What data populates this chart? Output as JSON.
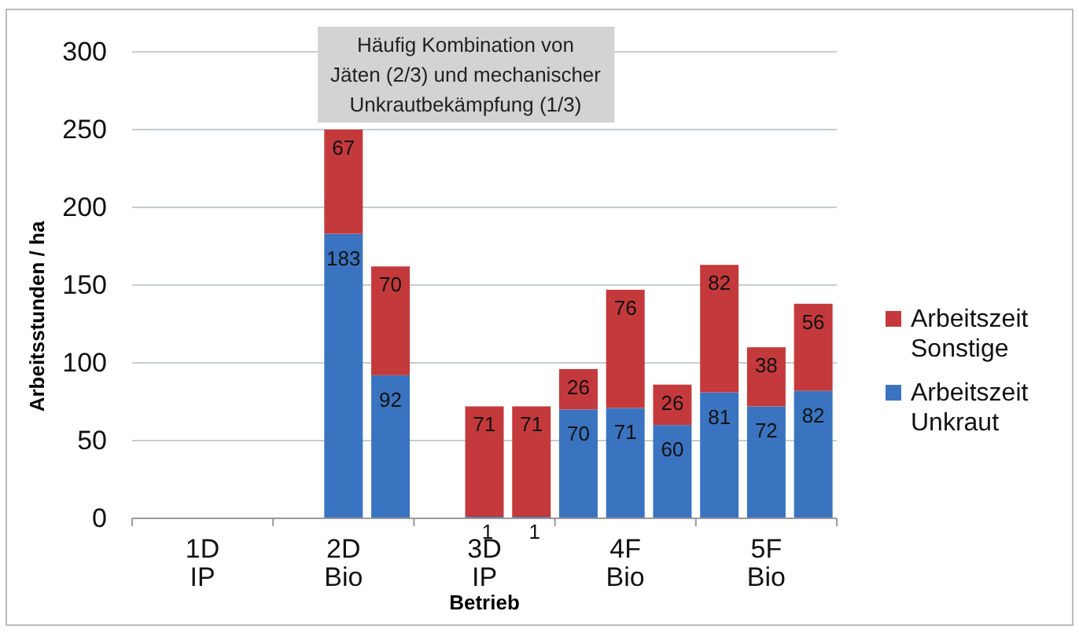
{
  "chart_data": {
    "type": "bar",
    "stacked": true,
    "xlabel": "Betrieb",
    "ylabel": "Arbeitsstunden / ha",
    "categories": [
      null,
      "1D\nIP",
      null,
      null,
      "2D\nBio",
      null,
      null,
      "3D\nIP",
      null,
      null,
      "4F\nBio",
      null,
      null,
      "5F\nBio",
      null
    ],
    "series": [
      {
        "name": "Arbeitszeit Unkraut",
        "color": "#3a74c0",
        "values": [
          null,
          null,
          null,
          null,
          183,
          92,
          null,
          1,
          1,
          70,
          71,
          60,
          81,
          72,
          82
        ]
      },
      {
        "name": "Arbeitszeit Sonstige",
        "color": "#c4393b",
        "values": [
          null,
          null,
          null,
          null,
          67,
          70,
          null,
          71,
          71,
          26,
          76,
          26,
          82,
          38,
          56
        ]
      }
    ],
    "ylim": [
      0,
      300
    ],
    "yticks": [
      0,
      50,
      100,
      150,
      200,
      250,
      300
    ],
    "grid": "y",
    "legend": "right",
    "data_labels": true,
    "annotations": [
      "Häufig Kombination von\nJäten (2/3) und mechanischer\nUnkrautbekämpfung (1/3)"
    ]
  }
}
